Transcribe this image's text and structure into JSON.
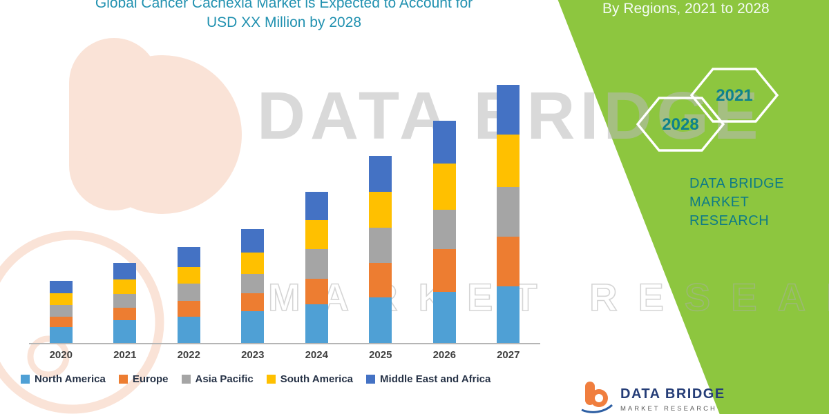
{
  "header": {
    "title_line1": "Global Cancer Cachexia Market is Expected to Account for",
    "title_line2": "USD XX Million by 2028"
  },
  "side_panel": {
    "subtitle": "By Regions, 2021 to 2028",
    "hexagon_back_label": "2028",
    "hexagon_front_label": "2021",
    "brand_line1": "DATA BRIDGE MARKET",
    "brand_line2": "RESEARCH",
    "panel_color": "#8DC63F",
    "accent_text_color": "#0E7B86"
  },
  "watermarks": {
    "big_text": "DATA BRIDGE",
    "outline_text": "MARKET RESEARCH"
  },
  "footer": {
    "brand": "DATA BRIDGE",
    "brand_sub": "MARKET RESEARCH"
  },
  "chart_data": {
    "type": "bar",
    "stacked": true,
    "title": "Global Cancer Cachexia Market is Expected to Account for USD XX Million by 2028",
    "units_hint": "USD XX Million (numeric values not labeled in figure; series values are relative estimates read from bar heights)",
    "categories": [
      "2020",
      "2021",
      "2022",
      "2023",
      "2024",
      "2025",
      "2026",
      "2027"
    ],
    "series": [
      {
        "name": "North America",
        "color": "#4FA0D5",
        "values": [
          22,
          32,
          37,
          45,
          54,
          64,
          72,
          79
        ]
      },
      {
        "name": "Europe",
        "color": "#ED7D31",
        "values": [
          15,
          17,
          22,
          25,
          36,
          48,
          60,
          70
        ]
      },
      {
        "name": "Asia Pacific",
        "color": "#A5A5A5",
        "values": [
          16,
          20,
          24,
          27,
          42,
          50,
          55,
          70
        ]
      },
      {
        "name": "South America",
        "color": "#FFC000",
        "values": [
          17,
          20,
          24,
          30,
          40,
          50,
          65,
          73
        ]
      },
      {
        "name": "Middle East and Africa",
        "color": "#4472C4",
        "values": [
          17,
          23,
          28,
          33,
          40,
          50,
          60,
          70
        ]
      }
    ],
    "xlabel": "",
    "ylabel": "",
    "value_axis_visible": false,
    "grid": false,
    "legend_position": "bottom"
  }
}
